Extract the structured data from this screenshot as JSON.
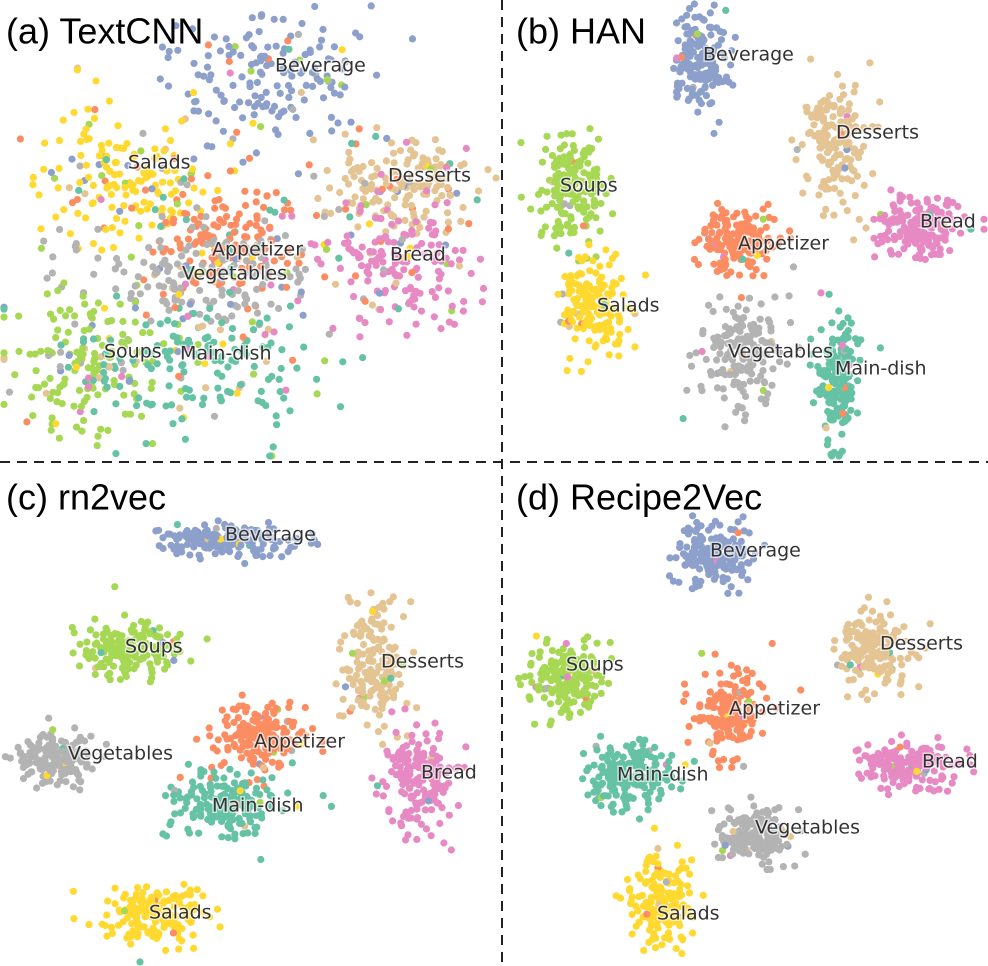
{
  "panels": [
    {
      "title": "(a) TextCNN",
      "clusters": [
        {
          "label": "Beverage",
          "color": "#8da0cb"
        },
        {
          "label": "Salads",
          "color": "#ffd92f"
        },
        {
          "label": "Desserts",
          "color": "#e5c494"
        },
        {
          "label": "Bread",
          "color": "#e78ac3"
        },
        {
          "label": "Appetizer",
          "color": "#fc8d62"
        },
        {
          "label": "Vegetables",
          "color": "#b3b3b3"
        },
        {
          "label": "Soups",
          "color": "#a6d854"
        },
        {
          "label": "Main-dish",
          "color": "#66c2a5"
        }
      ]
    },
    {
      "title": "(b) HAN",
      "clusters": [
        {
          "label": "Beverage",
          "color": "#8da0cb"
        },
        {
          "label": "Desserts",
          "color": "#e5c494"
        },
        {
          "label": "Bread",
          "color": "#e78ac3"
        },
        {
          "label": "Soups",
          "color": "#a6d854"
        },
        {
          "label": "Appetizer",
          "color": "#fc8d62"
        },
        {
          "label": "Salads",
          "color": "#ffd92f"
        },
        {
          "label": "Vegetables",
          "color": "#b3b3b3"
        },
        {
          "label": "Main-dish",
          "color": "#66c2a5"
        }
      ]
    },
    {
      "title": "(c) rn2vec",
      "clusters": [
        {
          "label": "Beverage",
          "color": "#8da0cb"
        },
        {
          "label": "Soups",
          "color": "#a6d854"
        },
        {
          "label": "Desserts",
          "color": "#e5c494"
        },
        {
          "label": "Vegetables",
          "color": "#b3b3b3"
        },
        {
          "label": "Appetizer",
          "color": "#fc8d62"
        },
        {
          "label": "Bread",
          "color": "#e78ac3"
        },
        {
          "label": "Main-dish",
          "color": "#66c2a5"
        },
        {
          "label": "Salads",
          "color": "#ffd92f"
        }
      ]
    },
    {
      "title": "(d) Recipe2Vec",
      "clusters": [
        {
          "label": "Beverage",
          "color": "#8da0cb"
        },
        {
          "label": "Desserts",
          "color": "#e5c494"
        },
        {
          "label": "Soups",
          "color": "#a6d854"
        },
        {
          "label": "Appetizer",
          "color": "#fc8d62"
        },
        {
          "label": "Bread",
          "color": "#e78ac3"
        },
        {
          "label": "Main-dish",
          "color": "#66c2a5"
        },
        {
          "label": "Vegetables",
          "color": "#b3b3b3"
        },
        {
          "label": "Salads",
          "color": "#ffd92f"
        }
      ]
    }
  ]
}
